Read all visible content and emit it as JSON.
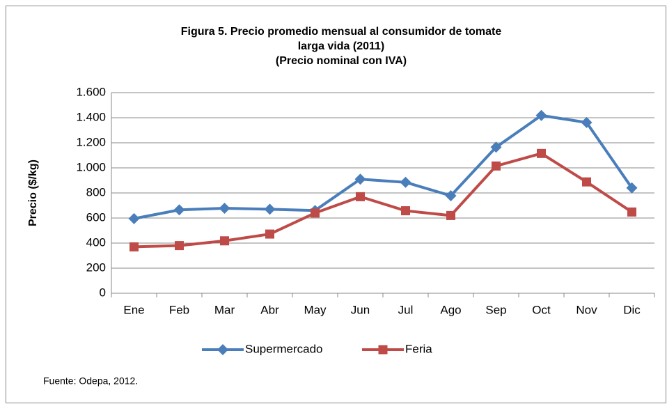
{
  "chart_data": {
    "type": "line",
    "title": [
      "Figura 5. Precio promedio mensual al consumidor de tomate",
      "larga vida (2011)",
      "(Precio nominal con IVA)"
    ],
    "y_label": "Precio ($/kg)",
    "source": "Fuente: Odepa, 2012.",
    "categories": [
      "Ene",
      "Feb",
      "Mar",
      "Abr",
      "May",
      "Jun",
      "Jul",
      "Ago",
      "Sep",
      "Oct",
      "Nov",
      "Dic"
    ],
    "series": [
      {
        "name": "Supermercado",
        "color": "#4a7ebb",
        "marker": "diamond",
        "values": [
          595,
          665,
          678,
          670,
          660,
          910,
          885,
          778,
          1165,
          1418,
          1362,
          840
        ]
      },
      {
        "name": "Feria",
        "color": "#be4b48",
        "marker": "square",
        "values": [
          370,
          380,
          418,
          472,
          640,
          770,
          658,
          620,
          1015,
          1115,
          888,
          648
        ]
      }
    ],
    "ylim": [
      0,
      1600
    ],
    "yticks": [
      0,
      200,
      400,
      600,
      800,
      {
        "value": 1000,
        "label": "1.000"
      },
      {
        "value": 1200,
        "label": "1.200"
      },
      {
        "value": 1400,
        "label": "1.400"
      },
      {
        "value": 1600,
        "label": "1.600"
      }
    ],
    "grid": true,
    "legend": "bottom"
  }
}
